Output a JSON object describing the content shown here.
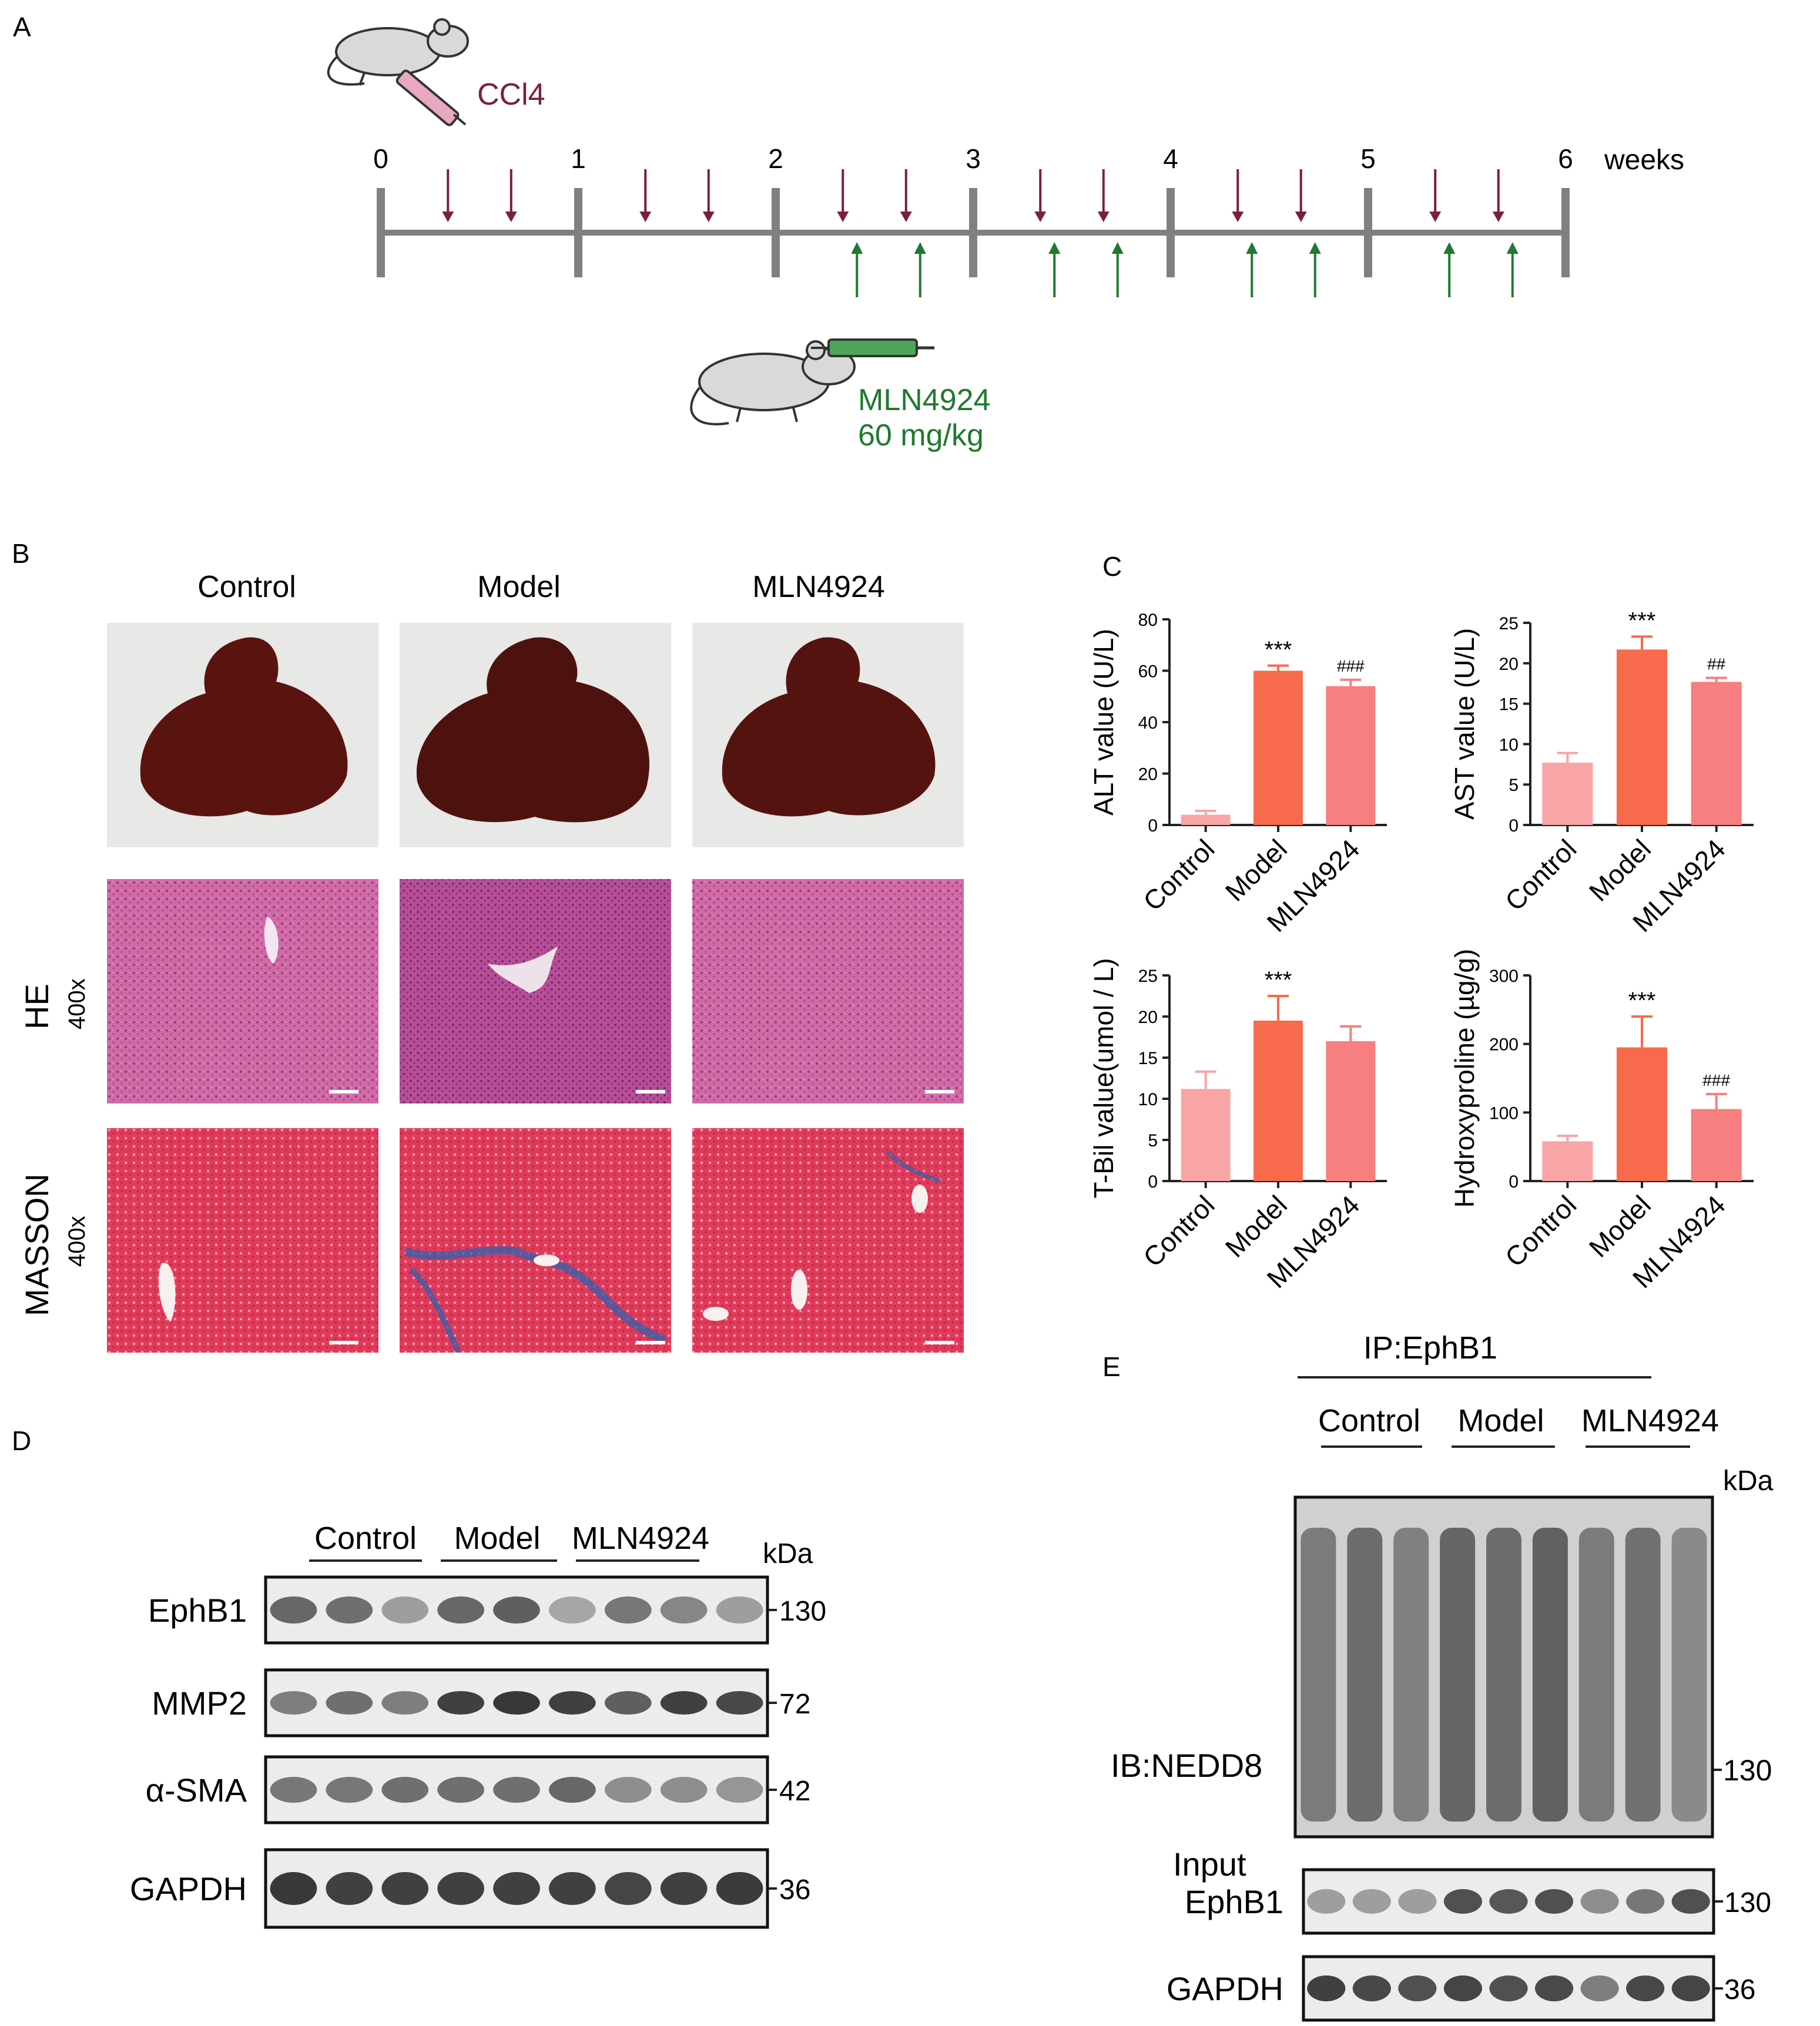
{
  "panels": {
    "A": {
      "letter": "A",
      "ccl4_label": "CCl4",
      "mln_label_1": "MLN4924",
      "mln_label_2": "60 mg/kg",
      "week_ticks": [
        "0",
        "1",
        "2",
        "3",
        "4",
        "5",
        "6"
      ],
      "weeks_label": "weeks",
      "colors": {
        "ccl4": "#7a1f3d",
        "mln": "#1f7a2e",
        "timeline": "#808080"
      }
    },
    "B": {
      "letter": "B",
      "columns": [
        "Control",
        "Model",
        "MLN4924"
      ],
      "rows": [
        {
          "stain": "HE",
          "mag": "400x"
        },
        {
          "stain": "MASSON",
          "mag": "400x"
        }
      ]
    },
    "C": {
      "letter": "C",
      "colors": {
        "Control": "#f9a5a5",
        "Model": "#f76a4c",
        "MLN4924": "#f77f7f"
      }
    },
    "D": {
      "letter": "D",
      "groups": [
        "Control",
        "Model",
        "MLN4924"
      ],
      "kda_label": "kDa",
      "rows": [
        {
          "name": "EphB1",
          "kda": "130"
        },
        {
          "name": "MMP2",
          "kda": "72"
        },
        {
          "name": "α-SMA",
          "kda": "42"
        },
        {
          "name": "GAPDH",
          "kda": "36"
        }
      ]
    },
    "E": {
      "letter": "E",
      "ip_label": "IP:EphB1",
      "groups": [
        "Control",
        "Model",
        "MLN4924"
      ],
      "kda_label": "kDa",
      "ib_label": "IB:NEDD8",
      "ib_kda": "130",
      "input_label": "Input",
      "rows": [
        {
          "name": "EphB1",
          "kda": "130"
        },
        {
          "name": "GAPDH",
          "kda": "36"
        }
      ]
    }
  },
  "chart_data": [
    {
      "type": "bar",
      "categories": [
        "Control",
        "Model",
        "MLN4924"
      ],
      "values": [
        4,
        60,
        54
      ],
      "errors": [
        1.5,
        2,
        2.5
      ],
      "annotations": [
        "",
        "***",
        "###"
      ],
      "ylabel": "ALT value (U/L)",
      "ylim": [
        0,
        80
      ],
      "yticks": [
        0,
        20,
        40,
        60,
        80
      ]
    },
    {
      "type": "bar",
      "categories": [
        "Control",
        "Model",
        "MLN4924"
      ],
      "values": [
        7.7,
        21.7,
        17.7
      ],
      "errors": [
        1.2,
        1.6,
        0.5
      ],
      "annotations": [
        "",
        "***",
        "##"
      ],
      "ylabel": "AST value (U/L)",
      "ylim": [
        0,
        25
      ],
      "yticks": [
        0,
        5,
        10,
        15,
        20,
        25
      ]
    },
    {
      "type": "bar",
      "categories": [
        "Control",
        "Model",
        "MLN4924"
      ],
      "values": [
        11.2,
        19.5,
        17
      ],
      "errors": [
        2.1,
        3,
        1.8
      ],
      "annotations": [
        "",
        "***",
        ""
      ],
      "ylabel": "T-Bil value(umol / L)",
      "ylim": [
        0,
        25
      ],
      "yticks": [
        0,
        5,
        10,
        15,
        20,
        25
      ]
    },
    {
      "type": "bar",
      "categories": [
        "Control",
        "Model",
        "MLN4924"
      ],
      "values": [
        58,
        195,
        105
      ],
      "errors": [
        8,
        45,
        22
      ],
      "annotations": [
        "",
        "***",
        "###"
      ],
      "ylabel": "Hydroxyproline (µg/g)",
      "ylim": [
        0,
        300
      ],
      "yticks": [
        0,
        100,
        200,
        300
      ]
    }
  ]
}
